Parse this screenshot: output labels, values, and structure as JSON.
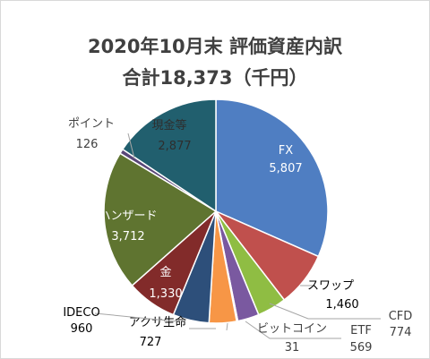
{
  "chart_data": {
    "type": "pie",
    "title": "2020年10月末 評価資産内訳",
    "subtitle": "合計18,373（千円）",
    "slices": [
      {
        "label": "FX",
        "value": 5807,
        "value_text": "5,807",
        "color": "#4f7ec2",
        "label_color": "#ffffff"
      },
      {
        "label": "スワップ",
        "value": 1460,
        "value_text": "1,460",
        "color": "#c0504d",
        "label_color": "#000000"
      },
      {
        "label": "CFD",
        "value": 774,
        "value_text": "774",
        "color": "#8fbd43",
        "label_color": "#404040"
      },
      {
        "label": "ETF",
        "value": 569,
        "value_text": "569",
        "color": "#7a59a0",
        "label_color": "#404040"
      },
      {
        "label": "ビットコイン",
        "value": 31,
        "value_text": "31",
        "color": "#43a0c4",
        "label_color": "#404040"
      },
      {
        "label": "アクサ生命",
        "value": 727,
        "value_text": "727",
        "color": "#f79646",
        "label_color": "#000000"
      },
      {
        "label": "IDECO",
        "value": 960,
        "value_text": "960",
        "color": "#2d4f7a",
        "label_color": "#000000"
      },
      {
        "label": "金",
        "value": 1330,
        "value_text": "1,330",
        "color": "#822b2a",
        "label_color": "#ffffff"
      },
      {
        "label": "ハンザード",
        "value": 3712,
        "value_text": "3,712",
        "color": "#5f7430",
        "label_color": "#ffffff"
      },
      {
        "label": "ポイント",
        "value": 126,
        "value_text": "126",
        "color": "#5a4778",
        "label_color": "#404040"
      },
      {
        "label": "現金等",
        "value": 2877,
        "value_text": "2,877",
        "color": "#215f6e",
        "label_color": "#2e2e2e"
      }
    ]
  }
}
